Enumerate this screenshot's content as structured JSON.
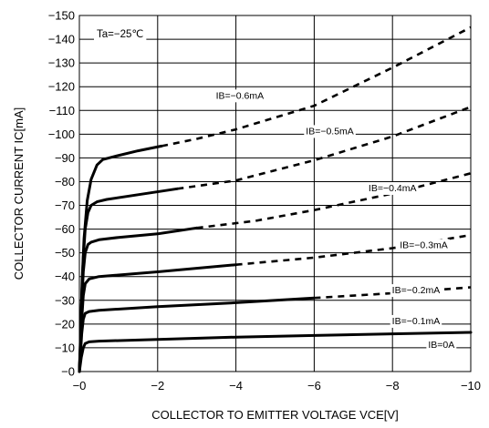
{
  "chart_data": {
    "type": "line",
    "title": "",
    "xlabel": "COLLECTOR TO EMITTER VOLTAGE VCE[V]",
    "ylabel": "COLLECTOR CURRENT IC[mA]",
    "xlim": [
      0,
      -10
    ],
    "ylim": [
      0,
      -150
    ],
    "xticks": [
      0,
      -2,
      -4,
      -6,
      -8,
      -10
    ],
    "xtick_labels": [
      "−0",
      "−2",
      "−4",
      "−6",
      "−8",
      "−10"
    ],
    "yticks": [
      0,
      -10,
      -20,
      -30,
      -40,
      -50,
      -60,
      -70,
      -80,
      -90,
      -100,
      -110,
      -120,
      -130,
      -140,
      -150
    ],
    "ytick_labels": [
      "−0",
      "−10",
      "−20",
      "−30",
      "−40",
      "−50",
      "−60",
      "−70",
      "−80",
      "−90",
      "−100",
      "−110",
      "−120",
      "−130",
      "−140",
      "−150"
    ],
    "grid": true,
    "annotation": "Ta=−25℃",
    "series": [
      {
        "name": "IB=0A",
        "solid": [
          [
            0,
            0
          ],
          [
            0.05,
            -6
          ],
          [
            0.1,
            -10
          ],
          [
            0.15,
            -11.8
          ],
          [
            0.25,
            -12.5
          ],
          [
            0.5,
            -12.8
          ],
          [
            2,
            -13.5
          ],
          [
            4,
            -14.5
          ],
          [
            6,
            -15.2
          ],
          [
            8,
            -15.9
          ],
          [
            10,
            -16.5
          ]
        ],
        "dashed": [],
        "label_x": -9.25,
        "label_y": -11.5
      },
      {
        "name": "IB=−0.1mA",
        "solid": [
          [
            0,
            0
          ],
          [
            0.03,
            -8
          ],
          [
            0.06,
            -16
          ],
          [
            0.1,
            -22
          ],
          [
            0.15,
            -24.5
          ],
          [
            0.25,
            -25.3
          ],
          [
            0.5,
            -25.8
          ],
          [
            2,
            -27.3
          ],
          [
            4,
            -29
          ],
          [
            6,
            -31
          ]
        ],
        "dashed": [
          [
            6,
            -31
          ],
          [
            8,
            -33
          ],
          [
            10,
            -35.5
          ]
        ],
        "label_x": -8.6,
        "label_y": -21.5
      },
      {
        "name": "IB=−0.2mA",
        "solid": [
          [
            0,
            0
          ],
          [
            0.03,
            -10
          ],
          [
            0.06,
            -22
          ],
          [
            0.1,
            -32
          ],
          [
            0.15,
            -37
          ],
          [
            0.25,
            -39
          ],
          [
            0.5,
            -40
          ],
          [
            2,
            -42
          ],
          [
            4,
            -45
          ]
        ],
        "dashed": [
          [
            4,
            -45
          ],
          [
            6,
            -48
          ],
          [
            8,
            -52
          ],
          [
            10,
            -57.5
          ]
        ],
        "label_x": -8.6,
        "label_y": -34.5
      },
      {
        "name": "IB=−0.3mA",
        "solid": [
          [
            0,
            0
          ],
          [
            0.03,
            -12
          ],
          [
            0.06,
            -28
          ],
          [
            0.1,
            -42
          ],
          [
            0.15,
            -50
          ],
          [
            0.22,
            -53.5
          ],
          [
            0.3,
            -54.5
          ],
          [
            0.5,
            -55.5
          ],
          [
            1,
            -56.5
          ],
          [
            2,
            -58
          ],
          [
            3,
            -60.5
          ]
        ],
        "dashed": [
          [
            3,
            -60.5
          ],
          [
            4.5,
            -63.5
          ],
          [
            6,
            -68
          ],
          [
            8,
            -75
          ],
          [
            10,
            -83.5
          ]
        ],
        "label_x": -8.8,
        "label_y": -53.5
      },
      {
        "name": "IB=−0.4mA",
        "solid": [
          [
            0,
            0
          ],
          [
            0.03,
            -14
          ],
          [
            0.06,
            -32
          ],
          [
            0.1,
            -48
          ],
          [
            0.15,
            -60
          ],
          [
            0.22,
            -67
          ],
          [
            0.3,
            -70
          ],
          [
            0.45,
            -71.5
          ],
          [
            0.7,
            -72.5
          ],
          [
            1.5,
            -74.5
          ],
          [
            2.5,
            -77
          ]
        ],
        "dashed": [
          [
            2.5,
            -77
          ],
          [
            4,
            -80.5
          ],
          [
            6,
            -89
          ],
          [
            8,
            -99
          ],
          [
            10,
            -111.5
          ]
        ],
        "label_x": -8.0,
        "label_y": -77.5
      },
      {
        "name": "IB=−0.5mA",
        "solid": [],
        "dashed": [],
        "label_x": -6.4,
        "label_y": -101.5
      },
      {
        "name": "IB=−0.6mA",
        "solid": [
          [
            0,
            0
          ],
          [
            0.03,
            -16
          ],
          [
            0.07,
            -38
          ],
          [
            0.12,
            -56
          ],
          [
            0.2,
            -72
          ],
          [
            0.3,
            -81
          ],
          [
            0.45,
            -87
          ],
          [
            0.6,
            -89.3
          ],
          [
            0.9,
            -90.6
          ],
          [
            1.5,
            -93
          ],
          [
            2.1,
            -95
          ]
        ],
        "dashed": [
          [
            2.1,
            -95
          ],
          [
            3,
            -98
          ],
          [
            4,
            -102
          ],
          [
            6,
            -112
          ],
          [
            8,
            -128
          ],
          [
            10,
            -145
          ]
        ],
        "label_x": -4.1,
        "label_y": -116.5
      }
    ]
  }
}
